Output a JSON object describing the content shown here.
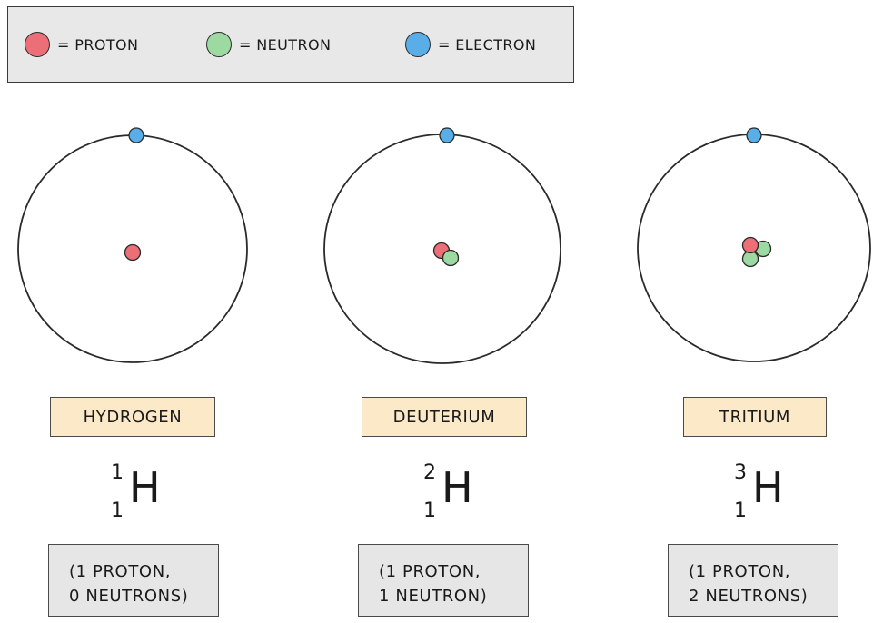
{
  "legend": {
    "proton": {
      "label": "= PROTON",
      "color": "#ec6f77"
    },
    "neutron": {
      "label": "= NEUTRON",
      "color": "#9ddaa2"
    },
    "electron": {
      "label": "= ELECTRON",
      "color": "#5aaee8"
    }
  },
  "isotopes": [
    {
      "name": "HYDROGEN",
      "symbol": "H",
      "mass_number": "1",
      "atomic_number": "1",
      "protons": 1,
      "neutrons": 0,
      "electrons": 1,
      "info_line1": "(1 PROTON,",
      "info_line2": "0 NEUTRONS)"
    },
    {
      "name": "DEUTERIUM",
      "symbol": "H",
      "mass_number": "2",
      "atomic_number": "1",
      "protons": 1,
      "neutrons": 1,
      "electrons": 1,
      "info_line1": "(1 PROTON,",
      "info_line2": "1 NEUTRON)"
    },
    {
      "name": "TRITIUM",
      "symbol": "H",
      "mass_number": "3",
      "atomic_number": "1",
      "protons": 1,
      "neutrons": 2,
      "electrons": 1,
      "info_line1": "(1 PROTON,",
      "info_line2": "2 NEUTRONS)"
    }
  ]
}
